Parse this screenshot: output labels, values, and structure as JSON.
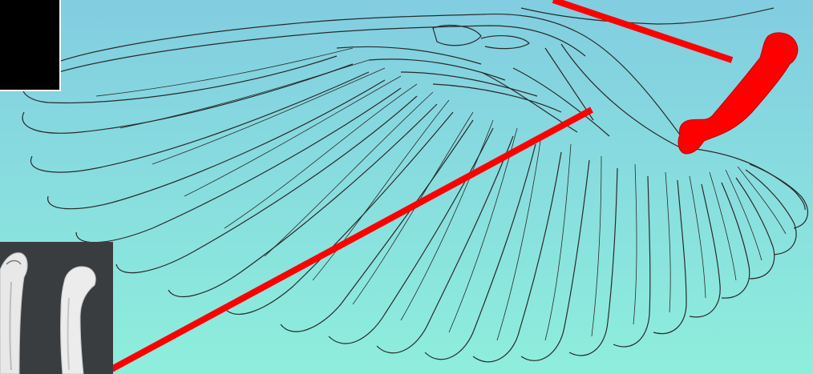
{
  "background": {
    "top_color": "#82cde1",
    "bottom_color": "#8eeedc"
  },
  "accent_color": "#ff0000",
  "line_color": "#2a2a2a",
  "elements": {
    "wing_drawing": "bird-wing-outline",
    "highlighted_bone": "humerus",
    "inset_photos": [
      "dark-photo-top-left",
      "bone-specimen-photo-bottom-left"
    ]
  }
}
